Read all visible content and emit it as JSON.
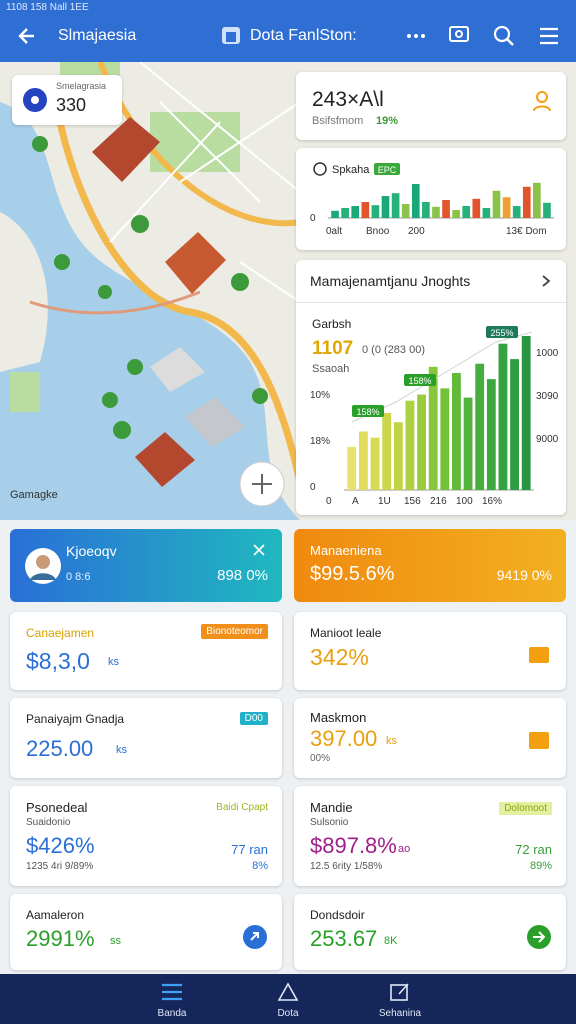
{
  "status_bar": {
    "text": "1108 158 Nall 1EE"
  },
  "app_bar": {
    "title": "Slmajaesia",
    "center_title": "Dota FanlSton:"
  },
  "map": {
    "card_label": "Smelagrasia",
    "card_value": "330",
    "attribution": "Gamagke"
  },
  "stat_card": {
    "value": "243×A\\l",
    "subtitle": "Bsifsfmom",
    "change": "19%"
  },
  "mini_chart": {
    "type": "bar",
    "title": "Spkaha",
    "badge": "EPC",
    "y_label": "0",
    "x_labels": [
      "0alt",
      "Bnoo",
      "200",
      "13€ Dom"
    ],
    "values": [
      18,
      25,
      30,
      40,
      32,
      55,
      62,
      35,
      85,
      40,
      28,
      45,
      20,
      30,
      48,
      25,
      68,
      52,
      30,
      78,
      88,
      38
    ],
    "colors": [
      "#1aa87a",
      "#26b07a",
      "#1aa87a",
      "#e2542b",
      "#26b07a",
      "#1aa87a",
      "#26b07a",
      "#8bc34a",
      "#1aa87a",
      "#26b07a",
      "#8bc34a",
      "#e2542b",
      "#8bc34a",
      "#26b07a",
      "#e2542b",
      "#26b07a",
      "#8bc34a",
      "#f0a030",
      "#26b07a",
      "#e2542b",
      "#8bc34a",
      "#26b07a"
    ],
    "ylim": [
      0,
      100
    ]
  },
  "insights": {
    "title": "Mamajenamtjanu Jnoghts",
    "type": "bar",
    "label": "Garbsh",
    "headline": "1107",
    "headline_note": "0 (0 (283 00)",
    "sublabel": "Ssaoah",
    "left_axis_labels": [
      "0",
      "18%",
      "10%"
    ],
    "right_axis_labels": [
      "1000",
      "3090",
      "9000"
    ],
    "x_labels": [
      "0",
      "A",
      "1U",
      "156",
      "216",
      "100",
      "16%"
    ],
    "annotations": [
      "255%",
      "158%",
      "158%"
    ],
    "values": [
      28,
      38,
      34,
      50,
      44,
      58,
      62,
      80,
      66,
      76,
      60,
      82,
      72,
      95,
      85,
      100
    ],
    "colors": [
      "#e8e070",
      "#e2dc5c",
      "#d8da52",
      "#cbd64a",
      "#c2d444",
      "#acd040",
      "#9acb3c",
      "#88c63a",
      "#74c038",
      "#62ba38",
      "#52b43a",
      "#46ae3c",
      "#3ca83e",
      "#34a240",
      "#2e9c42",
      "#2a9644"
    ],
    "ylim": [
      0,
      100
    ]
  },
  "tiles": [
    {
      "title": "Kjoeoqv",
      "sub": "0 8:6",
      "value": "898 0%"
    },
    {
      "title": "Manaeniena",
      "value": "$99.5.6%",
      "side": "9419 0%"
    }
  ],
  "cards": [
    {
      "title": "Canaejamen",
      "badge": "Bionoteomor",
      "value": "$8,3,0",
      "unit": "ks"
    },
    {
      "title": "Manioot leale",
      "value": "342%"
    },
    {
      "title": "Panaiyajm Gnadja",
      "badge": "D00",
      "value": "225.00",
      "unit": "ks"
    },
    {
      "title": "Maskmon",
      "value": "397.00",
      "unit": "ks",
      "sub": "00%"
    },
    {
      "title": "Psonedeal",
      "sub": "Suaidonio",
      "badge": "Baidi Cpapt",
      "value": "$426%",
      "note": "1235 4ri 9/89%",
      "side": "77 ran",
      "side_sub": "8%"
    },
    {
      "title": "Mandie",
      "sub": "Sulsonio",
      "badge": "Dolomoot",
      "value": "$897.8%",
      "unit": "ao",
      "note": "12.5 6rity 1/58%",
      "side": "72 ran",
      "side_sub": "89%"
    },
    {
      "title": "Aamaleron",
      "value": "2991%",
      "unit": "ss"
    },
    {
      "title": "Dondsdoir",
      "value": "253.67",
      "unit": "8K"
    }
  ],
  "nav": [
    "Banda",
    "Dota",
    "Sehanina"
  ]
}
